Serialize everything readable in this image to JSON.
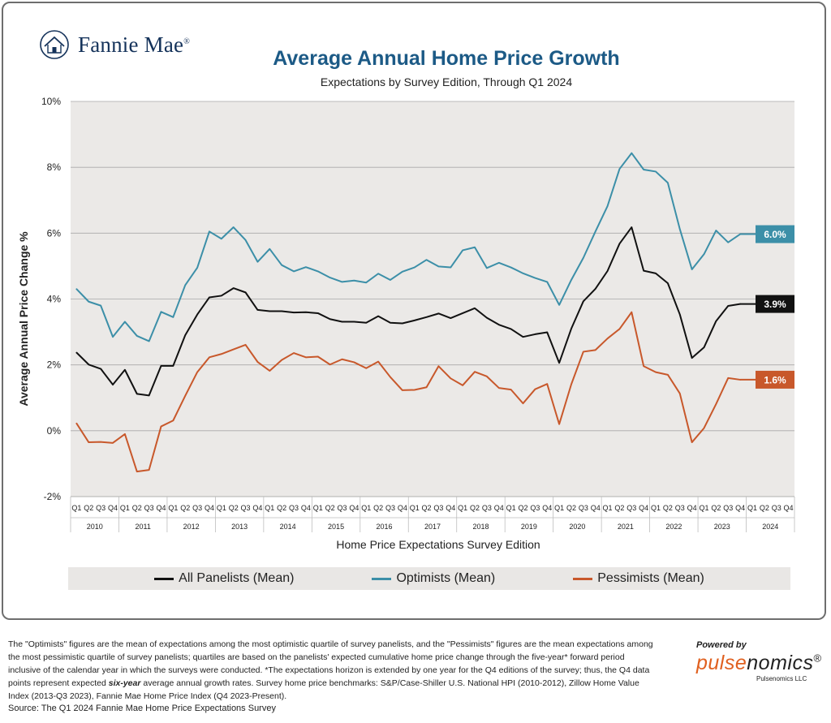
{
  "brand": {
    "name": "Fannie Mae",
    "reg": "®"
  },
  "header": {
    "title": "Average Annual Home Price Growth",
    "subtitle": "Expectations by Survey Edition, Through Q1 2024"
  },
  "chart_data": {
    "type": "line",
    "xlabel": "Home Price Expectations Survey Edition",
    "ylabel": "Average Annual Price Change %",
    "ylim": [
      -2,
      10
    ],
    "yticks": [
      -2,
      0,
      2,
      4,
      6,
      8,
      10
    ],
    "ytick_labels": [
      "-2%",
      "0%",
      "2%",
      "4%",
      "6%",
      "8%",
      "10%"
    ],
    "grid": true,
    "years": [
      "2010",
      "2011",
      "2012",
      "2013",
      "2014",
      "2015",
      "2016",
      "2017",
      "2018",
      "2019",
      "2020",
      "2021",
      "2022",
      "2023",
      "2024"
    ],
    "quarters": [
      "Q1",
      "Q2",
      "Q3",
      "Q4"
    ],
    "series": [
      {
        "name": "All Panelists (Mean)",
        "color": "#111111",
        "end_label": "3.9%",
        "values": [
          2.37,
          2.01,
          1.88,
          1.4,
          1.85,
          1.12,
          1.07,
          1.97,
          1.97,
          2.9,
          3.53,
          4.05,
          4.1,
          4.33,
          4.2,
          3.67,
          3.63,
          3.63,
          3.59,
          3.6,
          3.57,
          3.39,
          3.31,
          3.31,
          3.28,
          3.48,
          3.28,
          3.26,
          3.35,
          3.45,
          3.56,
          3.42,
          3.57,
          3.72,
          3.43,
          3.22,
          3.09,
          2.85,
          2.93,
          2.99,
          2.06,
          3.1,
          3.93,
          4.31,
          4.85,
          5.68,
          6.18,
          4.86,
          4.78,
          4.48,
          3.53,
          2.21,
          2.53,
          3.33,
          3.79,
          3.85
        ]
      },
      {
        "name": "Optimists (Mean)",
        "color": "#3c8fa8",
        "end_label": "6.0%",
        "values": [
          4.3,
          3.92,
          3.8,
          2.85,
          3.31,
          2.88,
          2.72,
          3.61,
          3.45,
          4.42,
          4.95,
          6.05,
          5.83,
          6.18,
          5.79,
          5.13,
          5.52,
          5.03,
          4.84,
          4.97,
          4.84,
          4.65,
          4.52,
          4.56,
          4.5,
          4.77,
          4.58,
          4.83,
          4.96,
          5.19,
          4.99,
          4.96,
          5.48,
          5.57,
          4.94,
          5.1,
          4.96,
          4.78,
          4.64,
          4.52,
          3.82,
          4.58,
          5.25,
          6.05,
          6.82,
          7.95,
          8.43,
          7.93,
          7.87,
          7.53,
          6.12,
          4.9,
          5.36,
          6.08,
          5.72,
          5.97
        ]
      },
      {
        "name": "Pessimists (Mean)",
        "color": "#c8582b",
        "end_label": "1.6%",
        "values": [
          0.22,
          -0.35,
          -0.34,
          -0.37,
          -0.1,
          -1.24,
          -1.19,
          0.13,
          0.31,
          1.06,
          1.78,
          2.23,
          2.33,
          2.47,
          2.61,
          2.09,
          1.82,
          2.15,
          2.36,
          2.23,
          2.25,
          2.01,
          2.17,
          2.08,
          1.9,
          2.1,
          1.63,
          1.23,
          1.24,
          1.32,
          1.96,
          1.59,
          1.38,
          1.79,
          1.65,
          1.3,
          1.25,
          0.83,
          1.26,
          1.42,
          0.2,
          1.41,
          2.4,
          2.45,
          2.8,
          3.09,
          3.6,
          1.96,
          1.78,
          1.7,
          1.13,
          -0.35,
          0.08,
          0.81,
          1.6,
          1.55
        ]
      }
    ]
  },
  "legend": {
    "items": [
      {
        "label": "All Panelists (Mean)",
        "color": "#111111"
      },
      {
        "label": "Optimists (Mean)",
        "color": "#3c8fa8"
      },
      {
        "label": "Pessimists (Mean)",
        "color": "#c8582b"
      }
    ]
  },
  "footnote": {
    "part1": "The \"Optimists\" figures are the mean of expectations  among the most optimistic quartile of survey panelists, and the \"Pessimists\" figures are the mean expectations among the most pessimistic quartile of survey panelists; quartiles are based on the panelists' expected cumulative home price change through the five-year* forward period inclusive of the calendar year in which the surveys were conducted. *The expectations horizon is extended by one year for the Q4 editions of the survey; thus, the Q4 data points represent expected ",
    "emph": "six-year",
    "part2": " average annual growth rates. Survey home price benchmarks: S&P/Case-Shiller U.S. National HPI (2010-2012), Zillow Home Value Index (2013-Q3 2023), Fannie Mae Home Price Index (Q4 2023-Present)."
  },
  "source": "Source: The Q1 2024 Fannie Mae Home Price Expectations Survey",
  "pulsenomics": {
    "powered_by": "Powered by",
    "name_a": "pulse",
    "name_b": "nomics",
    "reg": "®",
    "llc": "Pulsenomics LLC"
  }
}
